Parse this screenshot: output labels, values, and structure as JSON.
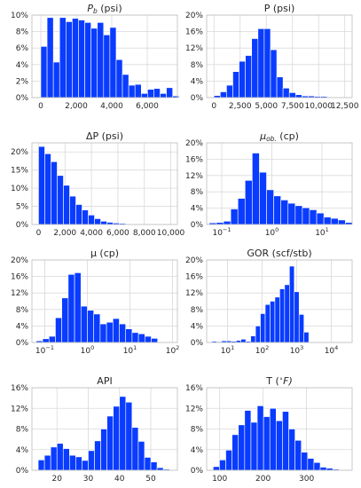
{
  "colors": {
    "bar": "#0a3cff",
    "grid": "#d9d9d9",
    "frame": "#bdbdbd",
    "text": "#262626"
  },
  "chart_data": [
    {
      "type": "bar",
      "title": "P_b (psi)",
      "title_main": "P",
      "title_sub": "b",
      "title_tail": " (psi)",
      "xscale": "linear",
      "xlim": [
        -500,
        7700
      ],
      "ylim": [
        0,
        10
      ],
      "x_ticks": [
        {
          "v": 0,
          "label": "0"
        },
        {
          "v": 2000,
          "label": "2,000"
        },
        {
          "v": 4000,
          "label": "4,000"
        },
        {
          "v": 6000,
          "label": "6,000"
        }
      ],
      "y_ticks": [
        {
          "v": 0,
          "label": "0%"
        },
        {
          "v": 2,
          "label": "2%"
        },
        {
          "v": 4,
          "label": "4%"
        },
        {
          "v": 6,
          "label": "6%"
        },
        {
          "v": 8,
          "label": "8%"
        },
        {
          "v": 10,
          "label": "10%"
        }
      ],
      "bins": {
        "start": 0,
        "width": 354,
        "values": [
          6.2,
          9.7,
          4.3,
          9.7,
          9.2,
          9.6,
          9.4,
          9.1,
          8.4,
          9.1,
          7.6,
          8.5,
          4.6,
          2.8,
          1.5,
          1.6,
          0.5,
          1.0,
          1.1,
          0.5,
          1.2,
          0.2
        ]
      }
    },
    {
      "type": "bar",
      "title": "P (psi)",
      "xscale": "linear",
      "xlim": [
        -700,
        13200
      ],
      "ylim": [
        0,
        20
      ],
      "x_ticks": [
        {
          "v": 0,
          "label": "0"
        },
        {
          "v": 2500,
          "label": "2,500"
        },
        {
          "v": 5000,
          "label": "5,000"
        },
        {
          "v": 7500,
          "label": "7,500"
        },
        {
          "v": 10000,
          "label": "10,000"
        },
        {
          "v": 12500,
          "label": "12,500"
        }
      ],
      "y_ticks": [
        {
          "v": 0,
          "label": "0%"
        },
        {
          "v": 4,
          "label": "4%"
        },
        {
          "v": 8,
          "label": "8%"
        },
        {
          "v": 12,
          "label": "12%"
        },
        {
          "v": 16,
          "label": "16%"
        },
        {
          "v": 20,
          "label": "20%"
        }
      ],
      "bins": {
        "start": 0,
        "width": 600,
        "values": [
          0.5,
          1.4,
          3.0,
          6.3,
          8.8,
          10.2,
          14.3,
          16.7,
          16.7,
          11.6,
          5.0,
          2.3,
          1.2,
          0.7,
          0.4,
          0.4,
          0.3,
          0.3
        ]
      }
    },
    {
      "type": "bar",
      "title": "ΔP (psi)",
      "xscale": "linear",
      "xlim": [
        -500,
        10500
      ],
      "ylim": [
        0,
        22.5
      ],
      "x_ticks": [
        {
          "v": 0,
          "label": "0"
        },
        {
          "v": 2000,
          "label": "2,000"
        },
        {
          "v": 4000,
          "label": "4,000"
        },
        {
          "v": 6000,
          "label": "6,000"
        },
        {
          "v": 8000,
          "label": "8,000"
        },
        {
          "v": 10000,
          "label": "10,000"
        }
      ],
      "y_ticks": [
        {
          "v": 0,
          "label": "0%"
        },
        {
          "v": 5,
          "label": "5%"
        },
        {
          "v": 10,
          "label": "10%"
        },
        {
          "v": 15,
          "label": "15%"
        },
        {
          "v": 20,
          "label": "20%"
        }
      ],
      "bins": {
        "start": 0,
        "width": 470,
        "values": [
          21.5,
          19.5,
          17.3,
          13.5,
          10.8,
          7.8,
          5.5,
          4.0,
          2.6,
          1.6,
          0.9,
          0.6,
          0.4,
          0.3
        ]
      }
    },
    {
      "type": "bar",
      "title": "μ_ob (cp)",
      "title_main": "μ",
      "title_sub": "ob.",
      "title_tail": " (cp)",
      "xscale": "log",
      "xlim": [
        0.05,
        40
      ],
      "ylim": [
        0,
        20
      ],
      "x_ticks": [
        {
          "v": 0.1,
          "base": "10",
          "exp": "−1"
        },
        {
          "v": 1,
          "base": "10",
          "exp": "0"
        },
        {
          "v": 10,
          "base": "10",
          "exp": "1"
        }
      ],
      "y_ticks": [
        {
          "v": 0,
          "label": "0%"
        },
        {
          "v": 4,
          "label": "4%"
        },
        {
          "v": 8,
          "label": "8%"
        },
        {
          "v": 12,
          "label": "12%"
        },
        {
          "v": 16,
          "label": "16%"
        },
        {
          "v": 20,
          "label": "20%"
        }
      ],
      "bins": {
        "start_log": -1.25,
        "width_log": 0.143,
        "values": [
          0.4,
          0.5,
          0.8,
          3.8,
          6.4,
          10.8,
          17.5,
          12.8,
          8.5,
          7.0,
          6.0,
          5.2,
          4.6,
          4.1,
          3.6,
          2.8,
          1.8,
          1.5,
          1.1,
          0.5
        ]
      }
    },
    {
      "type": "bar",
      "title": "μ (cp)",
      "xscale": "log",
      "xlim": [
        0.05,
        130
      ],
      "ylim": [
        0,
        20
      ],
      "x_ticks": [
        {
          "v": 0.1,
          "base": "10",
          "exp": "−1"
        },
        {
          "v": 1,
          "base": "10",
          "exp": "0"
        },
        {
          "v": 10,
          "base": "10",
          "exp": "1"
        },
        {
          "v": 100,
          "base": "10",
          "exp": "2"
        }
      ],
      "y_ticks": [
        {
          "v": 0,
          "label": "0%"
        },
        {
          "v": 4,
          "label": "4%"
        },
        {
          "v": 8,
          "label": "8%"
        },
        {
          "v": 12,
          "label": "12%"
        },
        {
          "v": 16,
          "label": "16%"
        },
        {
          "v": 20,
          "label": "20%"
        }
      ],
      "bins": {
        "start_log": -1.2,
        "width_log": 0.15,
        "values": [
          0.4,
          0.9,
          1.5,
          6.0,
          10.8,
          16.5,
          16.9,
          8.8,
          7.8,
          6.9,
          4.5,
          4.9,
          5.8,
          4.5,
          3.3,
          2.4,
          2.1,
          1.5,
          1.0
        ]
      }
    },
    {
      "type": "bar",
      "title": "GOR (scf/stb)",
      "xscale": "log",
      "xlim": [
        2.5,
        40000
      ],
      "ylim": [
        0,
        20
      ],
      "x_ticks": [
        {
          "v": 10,
          "base": "10",
          "exp": "1"
        },
        {
          "v": 100,
          "base": "10",
          "exp": "2"
        },
        {
          "v": 1000,
          "base": "10",
          "exp": "3"
        },
        {
          "v": 10000,
          "base": "10",
          "exp": "4"
        }
      ],
      "y_ticks": [
        {
          "v": 0,
          "label": "0%"
        },
        {
          "v": 4,
          "label": "4%"
        },
        {
          "v": 8,
          "label": "8%"
        },
        {
          "v": 12,
          "label": "12%"
        },
        {
          "v": 16,
          "label": "16%"
        },
        {
          "v": 20,
          "label": "20%"
        }
      ],
      "bins": {
        "start_log": 0.55,
        "width_log": 0.14,
        "values": [
          0.3,
          0.2,
          0.4,
          0.4,
          0.3,
          0.5,
          0.8,
          0.3,
          1.6,
          4.0,
          7.0,
          9.2,
          10.0,
          11.0,
          13.0,
          14.0,
          18.5,
          12.3,
          6.8,
          2.5
        ]
      }
    },
    {
      "type": "bar",
      "title": "API",
      "xscale": "linear",
      "xlim": [
        12,
        58.5
      ],
      "ylim": [
        0,
        16
      ],
      "x_ticks": [
        {
          "v": 20,
          "label": "20"
        },
        {
          "v": 30,
          "label": "30"
        },
        {
          "v": 40,
          "label": "40"
        },
        {
          "v": 50,
          "label": "50"
        }
      ],
      "y_ticks": [
        {
          "v": 0,
          "label": "0%"
        },
        {
          "v": 4,
          "label": "4%"
        },
        {
          "v": 8,
          "label": "8%"
        },
        {
          "v": 12,
          "label": "12%"
        },
        {
          "v": 16,
          "label": "16%"
        }
      ],
      "bins": {
        "start": 14,
        "width": 2,
        "values": [
          2.0,
          2.9,
          4.5,
          5.2,
          4.2,
          2.9,
          2.6,
          1.9,
          3.8,
          5.7,
          8.0,
          10.5,
          12.4,
          14.3,
          13.2,
          8.3,
          5.6,
          2.5,
          1.6,
          0.5,
          0.2
        ]
      }
    },
    {
      "type": "bar",
      "title": "T (°F)",
      "title_main": "T (",
      "title_sup": "∘",
      "title_tail": "F)",
      "xscale": "linear",
      "xlim": [
        70,
        405
      ],
      "ylim": [
        0,
        16
      ],
      "x_ticks": [
        {
          "v": 100,
          "label": "100"
        },
        {
          "v": 200,
          "label": "200"
        },
        {
          "v": 300,
          "label": "300"
        }
      ],
      "y_ticks": [
        {
          "v": 0,
          "label": "0%"
        },
        {
          "v": 4,
          "label": "4%"
        },
        {
          "v": 8,
          "label": "8%"
        },
        {
          "v": 12,
          "label": "12%"
        },
        {
          "v": 16,
          "label": "16%"
        }
      ],
      "bins": {
        "start": 85,
        "width": 14.5,
        "values": [
          0.7,
          2.0,
          3.9,
          6.9,
          8.8,
          11.6,
          9.3,
          12.5,
          10.4,
          12.0,
          9.6,
          11.4,
          8.0,
          5.8,
          3.5,
          2.3,
          1.5,
          0.6,
          0.4,
          0.2,
          0.1
        ]
      }
    }
  ]
}
